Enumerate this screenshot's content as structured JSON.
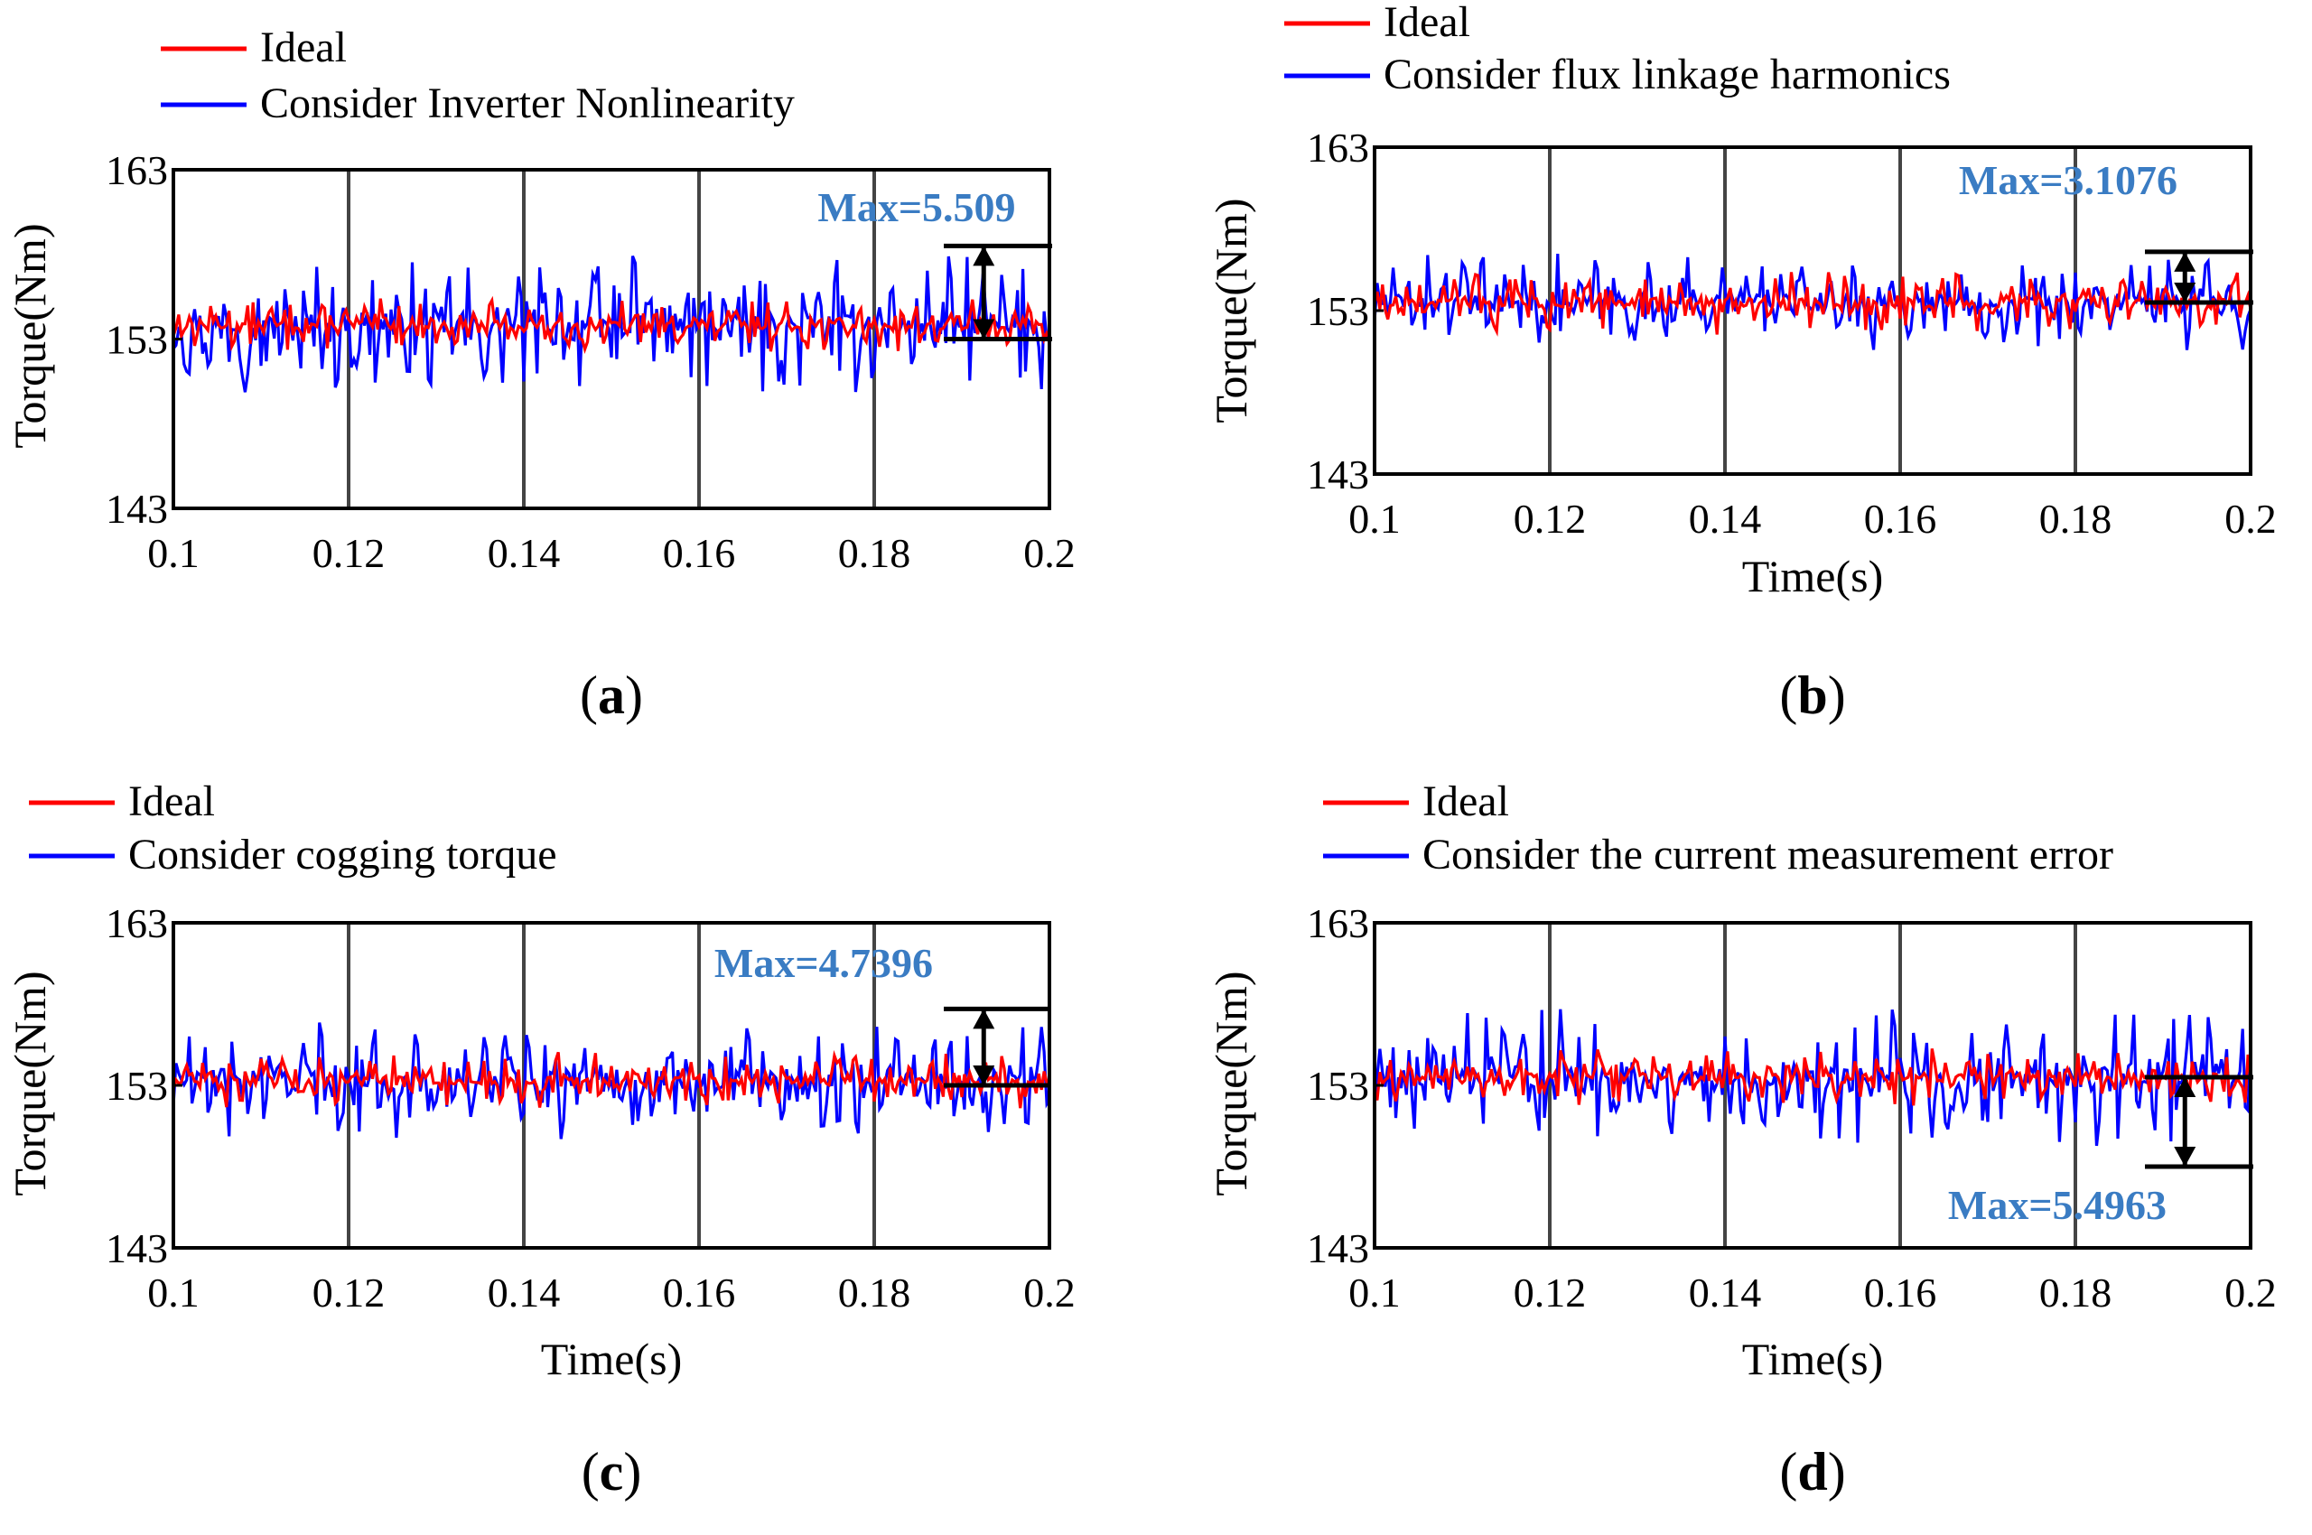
{
  "colors": {
    "ideal": "#ff0000",
    "consider": "#0000ff",
    "annotation": "#3a7cc3",
    "axis": "#000000"
  },
  "chart_data": [
    {
      "type": "line",
      "panel_label": "(a)",
      "ylabel": "Torque(Nm)",
      "xlabel": "",
      "xlim": [
        0.1,
        0.2
      ],
      "ylim": [
        143,
        163
      ],
      "xticks": [
        "0.1",
        "0.12",
        "0.14",
        "0.16",
        "0.18",
        "0.2"
      ],
      "yticks": [
        "143",
        "153",
        "163"
      ],
      "legend": [
        "Ideal",
        "Consider Inverter Nonlinearity"
      ],
      "annotation": "Max=5.509",
      "ideal": {
        "mean": 153.8,
        "amplitude": 1.6
      },
      "consider": {
        "mean": 153.8,
        "amplitude": 4.2
      },
      "max_marker": {
        "x": 0.1925,
        "from": 153,
        "to": 158.5
      },
      "series": [
        {
          "name": "Ideal",
          "mean": 153.8,
          "amplitude": 1.6
        },
        {
          "name": "Consider Inverter Nonlinearity",
          "mean": 153.8,
          "amplitude": 4.2
        }
      ]
    },
    {
      "type": "line",
      "panel_label": "(b)",
      "ylabel": "Torque(Nm)",
      "xlabel": "Time(s)",
      "xlim": [
        0.1,
        0.2
      ],
      "ylim": [
        143,
        163
      ],
      "xticks": [
        "0.1",
        "0.12",
        "0.14",
        "0.16",
        "0.18",
        "0.2"
      ],
      "yticks": [
        "143",
        "153",
        "163"
      ],
      "legend": [
        "Ideal",
        "Consider flux linkage harmonics"
      ],
      "annotation": "Max=3.1076",
      "ideal": {
        "mean": 153.5,
        "amplitude": 2.0
      },
      "consider": {
        "mean": 153.5,
        "amplitude": 3.0
      },
      "max_marker": {
        "x": 0.1925,
        "from": 153.5,
        "to": 156.6
      },
      "series": [
        {
          "name": "Ideal",
          "mean": 153.5,
          "amplitude": 2.0
        },
        {
          "name": "Consider flux linkage harmonics",
          "mean": 153.5,
          "amplitude": 3.0
        }
      ]
    },
    {
      "type": "line",
      "panel_label": "(c)",
      "ylabel": "Torque(Nm)",
      "xlabel": "Time(s)",
      "xlim": [
        0.1,
        0.2
      ],
      "ylim": [
        143,
        163
      ],
      "xticks": [
        "0.1",
        "0.12",
        "0.14",
        "0.16",
        "0.18",
        "0.2"
      ],
      "yticks": [
        "143",
        "153",
        "163"
      ],
      "legend": [
        "Ideal",
        "Consider cogging torque"
      ],
      "annotation": "Max=4.7396",
      "ideal": {
        "mean": 153.3,
        "amplitude": 1.8
      },
      "consider": {
        "mean": 153.3,
        "amplitude": 3.8
      },
      "max_marker": {
        "x": 0.1925,
        "from": 153,
        "to": 157.7
      },
      "series": [
        {
          "name": "Ideal",
          "mean": 153.3,
          "amplitude": 1.8
        },
        {
          "name": "Consider cogging torque",
          "mean": 153.3,
          "amplitude": 3.8
        }
      ]
    },
    {
      "type": "line",
      "panel_label": "(d)",
      "ylabel": "Torque(Nm)",
      "xlabel": "Time(s)",
      "xlim": [
        0.1,
        0.2
      ],
      "ylim": [
        143,
        163
      ],
      "xticks": [
        "0.1",
        "0.12",
        "0.14",
        "0.16",
        "0.18",
        "0.2"
      ],
      "yticks": [
        "143",
        "153",
        "163"
      ],
      "legend": [
        "Ideal",
        "Consider the current measurement error"
      ],
      "annotation": "Max=5.4963",
      "ideal": {
        "mean": 153.5,
        "amplitude": 1.8
      },
      "consider": {
        "mean": 153.5,
        "amplitude": 4.4
      },
      "max_marker": {
        "x": 0.1925,
        "from": 153.5,
        "to": 148.0
      },
      "series": [
        {
          "name": "Ideal",
          "mean": 153.5,
          "amplitude": 1.8
        },
        {
          "name": "Consider the current measurement error",
          "mean": 153.5,
          "amplitude": 4.4
        }
      ]
    }
  ]
}
